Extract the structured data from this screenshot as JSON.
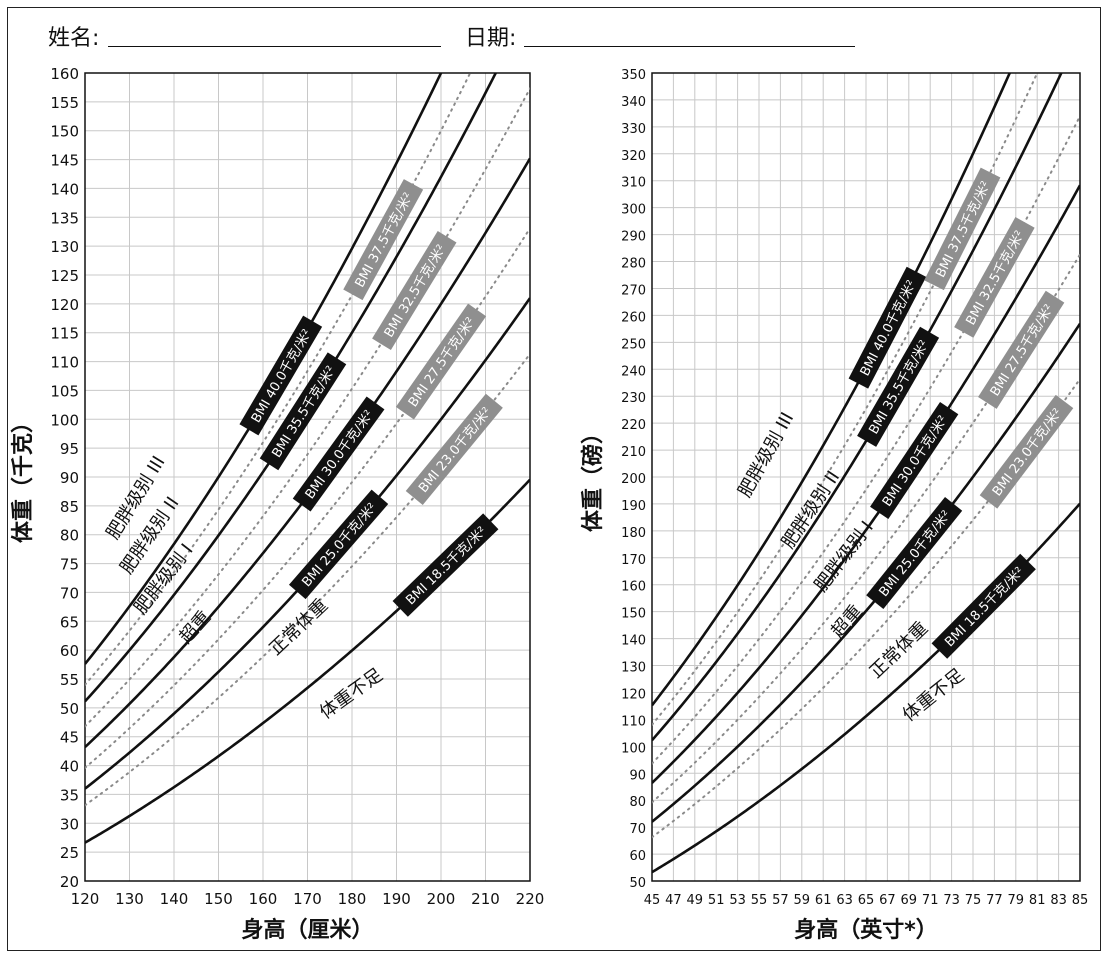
{
  "form": {
    "name_label": "姓名:",
    "date_label": "日期:"
  },
  "chart_data": [
    {
      "type": "line",
      "title": "",
      "xlabel": "身高（厘米）",
      "ylabel": "体重（千克）",
      "xlim": [
        120,
        220
      ],
      "ylim": [
        20,
        160
      ],
      "x_ticks": [
        120,
        130,
        140,
        150,
        160,
        170,
        180,
        190,
        200,
        210,
        220
      ],
      "y_ticks": [
        20,
        25,
        30,
        35,
        40,
        45,
        50,
        55,
        60,
        65,
        70,
        75,
        80,
        85,
        90,
        95,
        100,
        105,
        110,
        115,
        120,
        125,
        130,
        135,
        140,
        145,
        150,
        155,
        160
      ],
      "grid": true,
      "series": [
        {
          "name": "BMI 18.5千克/米²",
          "bmi": 18.5,
          "style": "solid",
          "label_style": "black",
          "label_at": {
            "x": 201,
            "y": 76
          }
        },
        {
          "name": "BMI 25.0千克/米²",
          "bmi": 25.0,
          "style": "solid",
          "label_style": "black",
          "label_at": {
            "x": 177,
            "y": 80
          }
        },
        {
          "name": "BMI 30.0千克/米²",
          "bmi": 30.0,
          "style": "solid",
          "label_style": "black",
          "label_at": {
            "x": 177,
            "y": 94
          }
        },
        {
          "name": "BMI 35.5千克/米²",
          "bmi": 35.5,
          "style": "solid",
          "label_style": "black",
          "label_at": {
            "x": 169,
            "y": 105
          }
        },
        {
          "name": "BMI 40.0千克/米²",
          "bmi": 40.0,
          "style": "solid",
          "label_style": "black",
          "label_at": {
            "x": 164,
            "y": 115
          }
        },
        {
          "name": "BMI 23.0千克/米²",
          "bmi": 23.0,
          "style": "dotted",
          "label_style": "gray",
          "label_at": {
            "x": 203,
            "y": 88
          }
        },
        {
          "name": "BMI 27.5千克/米²",
          "bmi": 27.5,
          "style": "dotted",
          "label_style": "gray",
          "label_at": {
            "x": 200,
            "y": 110
          }
        },
        {
          "name": "BMI 32.5千克/米²",
          "bmi": 32.5,
          "style": "dotted",
          "label_style": "gray",
          "label_at": {
            "x": 194,
            "y": 126
          }
        },
        {
          "name": "BMI 37.5千克/米²",
          "bmi": 37.5,
          "style": "dotted",
          "label_style": "gray",
          "label_at": {
            "x": 187,
            "y": 137
          }
        }
      ],
      "zones": [
        {
          "label": "肥胖级别 III",
          "x": 127,
          "y": 79
        },
        {
          "label": "肥胖级别 II",
          "x": 130,
          "y": 73
        },
        {
          "label": "肥胖级别 I",
          "x": 133,
          "y": 66
        },
        {
          "label": "超重",
          "x": 143,
          "y": 61
        },
        {
          "label": "正常体重",
          "x": 163,
          "y": 59
        },
        {
          "label": "体重不足",
          "x": 174,
          "y": 48
        }
      ]
    },
    {
      "type": "line",
      "title": "",
      "xlabel": "身高（英寸*）",
      "ylabel": "体重（磅）",
      "xlim": [
        45,
        85
      ],
      "ylim": [
        50,
        350
      ],
      "x_ticks": [
        45,
        47,
        49,
        51,
        53,
        55,
        57,
        59,
        61,
        63,
        65,
        67,
        69,
        71,
        73,
        75,
        77,
        79,
        81,
        83,
        85
      ],
      "y_ticks": [
        50,
        60,
        70,
        80,
        90,
        100,
        110,
        120,
        130,
        140,
        150,
        160,
        170,
        180,
        190,
        200,
        210,
        220,
        230,
        240,
        250,
        260,
        270,
        280,
        290,
        300,
        310,
        320,
        330,
        340,
        350
      ],
      "grid": true,
      "series": [
        {
          "name": "BMI 18.5千克/米²",
          "bmi": 18.5,
          "style": "solid",
          "label_style": "black",
          "label_at": {
            "x": 76,
            "y": 154
          }
        },
        {
          "name": "BMI 25.0千克/米²",
          "bmi": 25.0,
          "style": "solid",
          "label_style": "black",
          "label_at": {
            "x": 69.5,
            "y": 178
          }
        },
        {
          "name": "BMI 30.0千克/米²",
          "bmi": 30.0,
          "style": "solid",
          "label_style": "black",
          "label_at": {
            "x": 69.5,
            "y": 206
          }
        },
        {
          "name": "BMI 35.5千克/米²",
          "bmi": 35.5,
          "style": "solid",
          "label_style": "black",
          "label_at": {
            "x": 68,
            "y": 229
          }
        },
        {
          "name": "BMI 40.0千克/米²",
          "bmi": 40.0,
          "style": "solid",
          "label_style": "black",
          "label_at": {
            "x": 67,
            "y": 252
          }
        },
        {
          "name": "BMI 23.0千克/米²",
          "bmi": 23.0,
          "style": "dotted",
          "label_style": "gray",
          "label_at": {
            "x": 80,
            "y": 202
          }
        },
        {
          "name": "BMI 27.5千克/米²",
          "bmi": 27.5,
          "style": "dotted",
          "label_style": "gray",
          "label_at": {
            "x": 79.5,
            "y": 233
          }
        },
        {
          "name": "BMI 32.5千克/米²",
          "bmi": 32.5,
          "style": "dotted",
          "label_style": "gray",
          "label_at": {
            "x": 77,
            "y": 271
          }
        },
        {
          "name": "BMI 37.5千克/米²",
          "bmi": 37.5,
          "style": "dotted",
          "label_style": "gray",
          "label_at": {
            "x": 74,
            "y": 296
          }
        }
      ],
      "zones": [
        {
          "label": "肥胖级别 III",
          "x": 54,
          "y": 192
        },
        {
          "label": "肥胖级别 II",
          "x": 58,
          "y": 173
        },
        {
          "label": "肥胖级别 I",
          "x": 61,
          "y": 157
        },
        {
          "label": "超重",
          "x": 62.5,
          "y": 140
        },
        {
          "label": "正常体重",
          "x": 66,
          "y": 125
        },
        {
          "label": "体重不足",
          "x": 69,
          "y": 109
        }
      ]
    }
  ]
}
